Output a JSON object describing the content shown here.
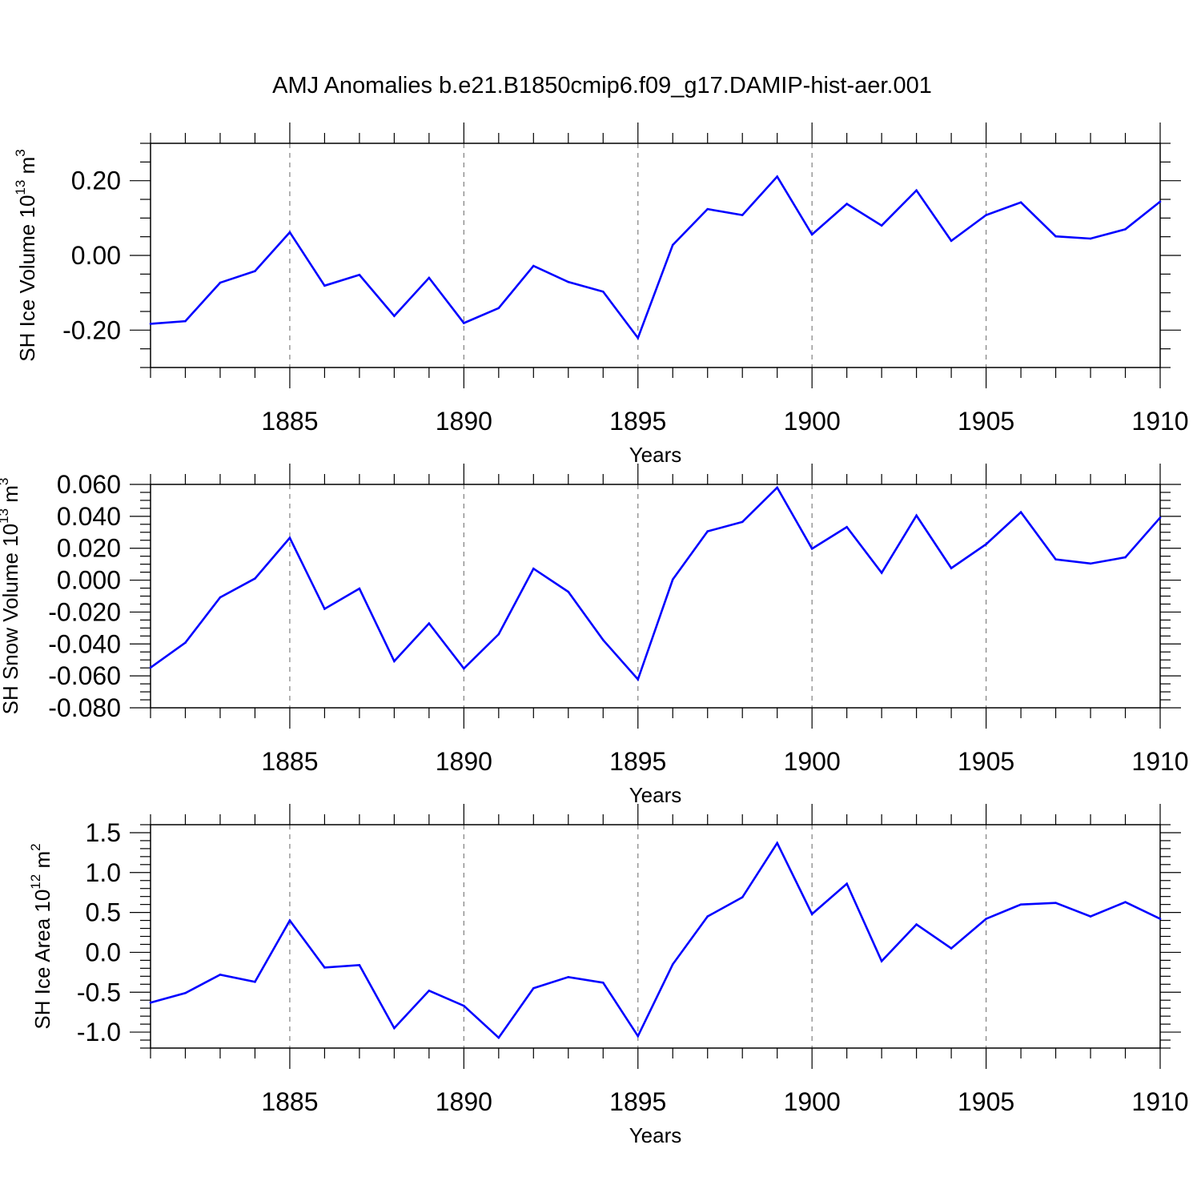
{
  "title": "AMJ Anomalies b.e21.B1850cmip6.f09_g17.DAMIP-hist-aer.001",
  "colors": {
    "series": "#0000ff",
    "axis": "#000000",
    "grid": "#808080"
  },
  "chart_data": [
    {
      "type": "line",
      "ylabel": "SH Ice Volume 10",
      "ylabel_exp": "13",
      "ylabel_unit": " m",
      "ylabel_unit_exp": "3",
      "xlabel": "Years",
      "xlim": [
        1881,
        1910
      ],
      "ylim": [
        -0.3,
        0.3
      ],
      "y_major_ticks": [
        -0.2,
        0.0,
        0.2
      ],
      "y_tick_labels": [
        "-0.20",
        "0.00",
        "0.20"
      ],
      "y_minor_step": 0.05,
      "x_major_ticks": [
        1885,
        1890,
        1895,
        1900,
        1905,
        1910
      ],
      "x_tick_labels": [
        "1885",
        "1890",
        "1895",
        "1900",
        "1905",
        "1910"
      ],
      "x": [
        1881,
        1882,
        1883,
        1884,
        1885,
        1886,
        1887,
        1888,
        1889,
        1890,
        1891,
        1892,
        1893,
        1894,
        1895,
        1896,
        1897,
        1898,
        1899,
        1900,
        1901,
        1902,
        1903,
        1904,
        1905,
        1906,
        1907,
        1908,
        1909,
        1910
      ],
      "values": [
        -0.183,
        -0.176,
        -0.073,
        -0.042,
        0.062,
        -0.081,
        -0.052,
        -0.162,
        -0.06,
        -0.181,
        -0.141,
        -0.028,
        -0.071,
        -0.097,
        -0.221,
        0.028,
        0.124,
        0.108,
        0.211,
        0.056,
        0.138,
        0.08,
        0.174,
        0.039,
        0.108,
        0.142,
        0.051,
        0.045,
        0.07,
        0.144
      ]
    },
    {
      "type": "line",
      "ylabel": "SH Snow Volume 10",
      "ylabel_exp": "13",
      "ylabel_unit": " m",
      "ylabel_unit_exp": "3",
      "xlabel": "Years",
      "xlim": [
        1881,
        1910
      ],
      "ylim": [
        -0.08,
        0.06
      ],
      "y_major_ticks": [
        -0.08,
        -0.06,
        -0.04,
        -0.02,
        0.0,
        0.02,
        0.04,
        0.06
      ],
      "y_tick_labels": [
        "-0.080",
        "-0.060",
        "-0.040",
        "-0.020",
        "0.000",
        "0.020",
        "0.040",
        "0.060"
      ],
      "y_minor_step": 0.005,
      "x_major_ticks": [
        1885,
        1890,
        1895,
        1900,
        1905,
        1910
      ],
      "x_tick_labels": [
        "1885",
        "1890",
        "1895",
        "1900",
        "1905",
        "1910"
      ],
      "x": [
        1881,
        1882,
        1883,
        1884,
        1885,
        1886,
        1887,
        1888,
        1889,
        1890,
        1891,
        1892,
        1893,
        1894,
        1895,
        1896,
        1897,
        1898,
        1899,
        1900,
        1901,
        1902,
        1903,
        1904,
        1905,
        1906,
        1907,
        1908,
        1909,
        1910
      ],
      "values": [
        -0.0548,
        -0.0392,
        -0.0108,
        0.001,
        0.0265,
        -0.018,
        -0.0053,
        -0.0508,
        -0.0271,
        -0.0554,
        -0.0339,
        0.0072,
        -0.0073,
        -0.0375,
        -0.0622,
        0.0004,
        0.0306,
        0.0365,
        0.058,
        0.0197,
        0.0333,
        0.0046,
        0.0405,
        0.0075,
        0.0225,
        0.0426,
        0.013,
        0.0104,
        0.0143,
        0.0392
      ]
    },
    {
      "type": "line",
      "ylabel": "SH Ice Area 10",
      "ylabel_exp": "12",
      "ylabel_unit": " m",
      "ylabel_unit_exp": "2",
      "xlabel": "Years",
      "xlim": [
        1881,
        1910
      ],
      "ylim": [
        -1.2,
        1.6
      ],
      "y_major_ticks": [
        -1.0,
        -0.5,
        0.0,
        0.5,
        1.0,
        1.5
      ],
      "y_tick_labels": [
        "-1.0",
        "-0.5",
        "0.0",
        "0.5",
        "1.0",
        "1.5"
      ],
      "y_minor_step": 0.1,
      "x_major_ticks": [
        1885,
        1890,
        1895,
        1900,
        1905,
        1910
      ],
      "x_tick_labels": [
        "1885",
        "1890",
        "1895",
        "1900",
        "1905",
        "1910"
      ],
      "x": [
        1881,
        1882,
        1883,
        1884,
        1885,
        1886,
        1887,
        1888,
        1889,
        1890,
        1891,
        1892,
        1893,
        1894,
        1895,
        1896,
        1897,
        1898,
        1899,
        1900,
        1901,
        1902,
        1903,
        1904,
        1905,
        1906,
        1907,
        1908,
        1909,
        1910
      ],
      "values": [
        -0.63,
        -0.51,
        -0.28,
        -0.37,
        0.4,
        -0.19,
        -0.16,
        -0.95,
        -0.48,
        -0.67,
        -1.07,
        -0.45,
        -0.31,
        -0.38,
        -1.05,
        -0.15,
        0.45,
        0.69,
        1.37,
        0.48,
        0.86,
        -0.11,
        0.35,
        0.05,
        0.42,
        0.6,
        0.62,
        0.45,
        0.63,
        0.42
      ]
    }
  ]
}
